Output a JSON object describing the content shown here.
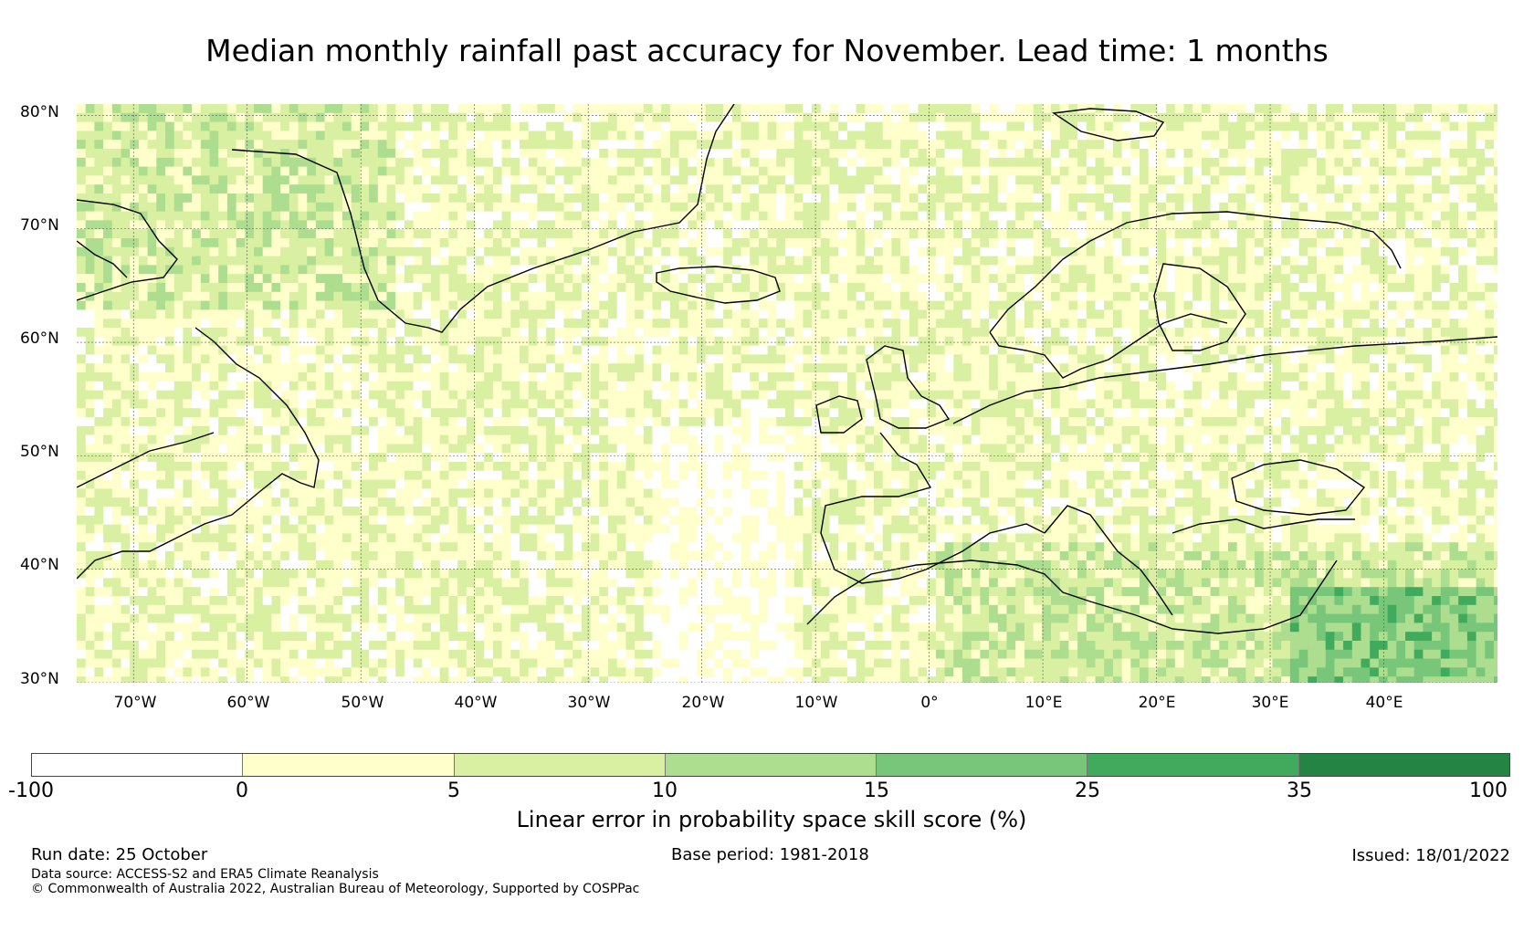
{
  "title": "Median monthly rainfall past accuracy for November. Lead time: 1 months",
  "map": {
    "region": "North Atlantic and Europe",
    "lat_range": [
      30,
      81
    ],
    "lon_range": [
      -75,
      50
    ],
    "y_ticks": [
      "80°N",
      "70°N",
      "60°N",
      "50°N",
      "40°N",
      "30°N"
    ],
    "x_ticks": [
      "70°W",
      "60°W",
      "50°W",
      "40°W",
      "30°W",
      "20°W",
      "10°W",
      "0°",
      "10°E",
      "20°E",
      "30°E",
      "40°E"
    ]
  },
  "colorbar": {
    "ticks": [
      "-100",
      "0",
      "5",
      "10",
      "15",
      "25",
      "35",
      "100"
    ],
    "colors": [
      "#ffffff",
      "#ffffcc",
      "#d9f0a3",
      "#addd8e",
      "#78c679",
      "#41ab5d",
      "#238443"
    ],
    "label": "Linear error in probability space skill score (%)"
  },
  "footer": {
    "run_date": "Run date: 25 October",
    "base_period": "Base period: 1981-2018",
    "issued": "Issued: 18/01/2022",
    "data_source": "Data source: ACCESS-S2 and ERA5 Climate Reanalysis",
    "copyright": "© Commonwealth of Australia 2022, Australian Bureau of Meteorology, Supported by COSPPac"
  }
}
